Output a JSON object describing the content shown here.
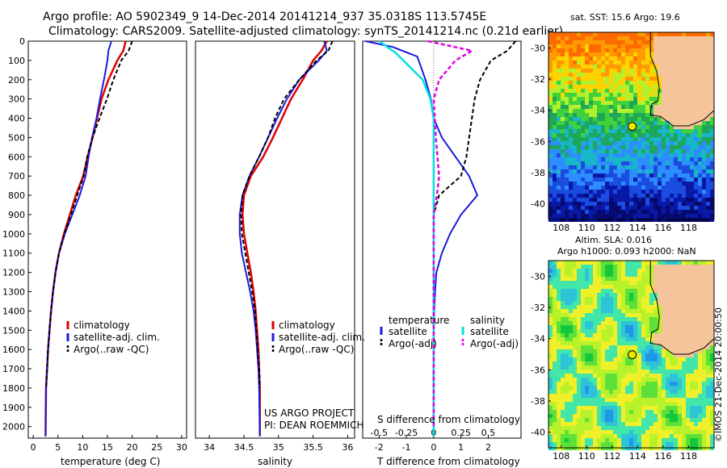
{
  "header": {
    "line1": "Argo profile: AO 5902349_9 14-Dec-2014 20141214_937 35.0318S 113.5745E",
    "line2": "Climatology: CARS2009. Satellite-adjusted climatology: synTS_20141214.nc (0.21d earlier)"
  },
  "footer": {
    "project_line1": "US ARGO PROJECT",
    "project_line2": "PI: DEAN ROEMMICH",
    "credit": "©IMOS 21-Dec-2014 20:00:50"
  },
  "colors": {
    "climatology": "#e00000",
    "satellite": "#1a1adc",
    "argo": "#000000",
    "salinity_satellite": "#00e0e0",
    "salinity_argo": "#e000e0",
    "land": "#f6c49a"
  },
  "chart_data": [
    {
      "type": "line",
      "id": "temperature",
      "xlabel": "temperature (deg C)",
      "xlim": [
        -1,
        31
      ],
      "xticks": [
        "0",
        "5",
        "10",
        "15",
        "20",
        "25",
        "30"
      ],
      "ylim": [
        0,
        2060
      ],
      "yticks": [
        "0",
        "100",
        "200",
        "300",
        "400",
        "500",
        "600",
        "700",
        "800",
        "900",
        "1000",
        "1100",
        "1200",
        "1300",
        "1400",
        "1500",
        "1600",
        "1700",
        "1800",
        "1900",
        "2000"
      ],
      "legend": [
        "climatology",
        "satellite-adj. clim.",
        "Argo(..raw -QC)"
      ],
      "series": [
        {
          "name": "climatology",
          "x": [
            18.7,
            18.2,
            17.0,
            15.2,
            13.8,
            12.9,
            12.0,
            11.0,
            10.1,
            8.6,
            7.4,
            6.2,
            5.2,
            4.5,
            4.0,
            3.6,
            3.3,
            3.0,
            2.8,
            2.6,
            2.5
          ],
          "y": [
            0,
            50,
            100,
            200,
            300,
            400,
            500,
            600,
            700,
            800,
            900,
            1000,
            1100,
            1200,
            1300,
            1400,
            1500,
            1600,
            1700,
            1800,
            2050
          ]
        },
        {
          "name": "satellite-adj. clim.",
          "x": [
            15.8,
            15.2,
            15.0,
            14.3,
            13.5,
            12.8,
            11.9,
            11.2,
            10.6,
            9.4,
            7.9,
            6.4,
            5.2,
            4.5,
            4.0,
            3.6,
            3.3,
            3.0,
            2.8,
            2.6,
            2.5
          ],
          "y": [
            0,
            50,
            100,
            200,
            300,
            400,
            500,
            600,
            700,
            800,
            900,
            1000,
            1100,
            1200,
            1300,
            1400,
            1500,
            1600,
            1700,
            1800,
            2050
          ]
        },
        {
          "name": "Argo(..raw -QC)",
          "x": [
            20.0,
            19.3,
            17.8,
            16.2,
            14.9,
            13.4,
            12.0,
            10.9,
            10.2,
            8.9,
            7.6,
            6.3,
            5.2,
            4.5,
            4.0,
            3.6,
            3.3,
            3.0,
            2.8,
            2.6
          ],
          "y": [
            0,
            50,
            100,
            200,
            300,
            400,
            500,
            600,
            700,
            800,
            900,
            1000,
            1100,
            1200,
            1300,
            1400,
            1500,
            1600,
            1700,
            1800
          ]
        }
      ]
    },
    {
      "type": "line",
      "id": "salinity",
      "xlabel": "salinity",
      "xlim": [
        33.8,
        36.1
      ],
      "xticks": [
        "34",
        "34.5",
        "35",
        "35.5",
        "36"
      ],
      "ylim": [
        0,
        2060
      ],
      "legend": [
        "climatology",
        "satellite-adj. clim.",
        "Argo(..raw -QC)"
      ],
      "series": [
        {
          "name": "climatology",
          "x": [
            35.7,
            35.62,
            35.5,
            35.35,
            35.18,
            35.05,
            34.92,
            34.78,
            34.6,
            34.5,
            34.48,
            34.5,
            34.55,
            34.6,
            34.64,
            34.67,
            34.69,
            34.71,
            34.72,
            34.73,
            34.73
          ],
          "y": [
            0,
            50,
            100,
            200,
            300,
            400,
            500,
            600,
            700,
            800,
            900,
            1000,
            1100,
            1200,
            1300,
            1400,
            1500,
            1600,
            1700,
            1800,
            2050
          ]
        },
        {
          "name": "satellite-adj. clim.",
          "x": [
            35.66,
            35.7,
            35.58,
            35.3,
            35.12,
            34.98,
            34.85,
            34.72,
            34.58,
            34.48,
            34.44,
            34.44,
            34.47,
            34.53,
            34.59,
            34.64,
            34.67,
            34.69,
            34.71,
            34.72,
            34.73
          ],
          "y": [
            0,
            50,
            100,
            200,
            300,
            400,
            500,
            600,
            700,
            800,
            900,
            1000,
            1100,
            1200,
            1300,
            1400,
            1500,
            1600,
            1700,
            1800,
            2050
          ]
        },
        {
          "name": "Argo(..raw -QC)",
          "x": [
            35.78,
            35.72,
            35.55,
            35.3,
            35.08,
            34.95,
            34.85,
            34.72,
            34.58,
            34.48,
            34.46,
            34.47,
            34.52,
            34.57,
            34.62,
            34.66,
            34.68,
            34.7,
            34.72,
            34.73
          ],
          "y": [
            0,
            50,
            100,
            200,
            300,
            400,
            500,
            600,
            700,
            800,
            900,
            1000,
            1100,
            1200,
            1300,
            1400,
            1500,
            1600,
            1700,
            1800
          ]
        }
      ]
    },
    {
      "type": "line",
      "id": "difference",
      "xlabel": "T difference from climatology",
      "xlabel2": "S difference from climatology",
      "xlim": [
        -2.6,
        3.2
      ],
      "xticks": [
        "-2",
        "-1",
        "0",
        "1",
        "2"
      ],
      "xticks2": [
        "-0.5",
        "-0.25",
        "0",
        "0.25",
        "0.5"
      ],
      "legend_temperature_title": "temperature",
      "legend_salinity_title": "salinity",
      "legend": [
        "satellite",
        "Argo(-adj)",
        "satellite",
        "Argo(-adj)"
      ],
      "series": [
        {
          "name": "temperature satellite",
          "x": [
            -2.5,
            -1.5,
            -0.6,
            -0.3,
            -0.1,
            0.0,
            0.3,
            0.8,
            1.3,
            1.6,
            1.0,
            0.6,
            0.3,
            0.1,
            0.05,
            0.02,
            0.0,
            0.0,
            0.0,
            0.0
          ],
          "y": [
            0,
            30,
            80,
            200,
            300,
            400,
            500,
            600,
            700,
            800,
            900,
            1000,
            1100,
            1200,
            1300,
            1400,
            1500,
            1600,
            1800,
            2050
          ]
        },
        {
          "name": "temperature Argo(-adj)",
          "x": [
            3.0,
            2.7,
            2.1,
            1.7,
            1.5,
            1.4,
            1.3,
            1.2,
            1.0,
            0.2,
            0.0,
            0.0,
            0.0,
            0.0,
            0.0,
            0.0,
            0.0,
            0.0
          ],
          "y": [
            0,
            50,
            100,
            200,
            300,
            400,
            500,
            600,
            700,
            800,
            900,
            1000,
            1100,
            1200,
            1400,
            1600,
            1800,
            2000
          ]
        },
        {
          "name": "salinity satellite",
          "x": [
            -0.5,
            -0.35,
            -0.1,
            -0.03,
            0.0,
            0.0,
            0.0,
            0.0,
            0.0,
            0.0,
            0.0,
            0.0,
            0.0
          ],
          "y": [
            0,
            60,
            200,
            300,
            400,
            500,
            700,
            900,
            1100,
            1300,
            1500,
            1800,
            2050
          ]
        },
        {
          "name": "salinity Argo(-adj)",
          "x": [
            -0.05,
            0.35,
            0.2,
            0.05,
            0.0,
            0.02,
            0.05,
            0.03,
            0.0,
            0.0,
            0.0,
            0.0
          ],
          "y": [
            0,
            50,
            100,
            200,
            300,
            500,
            700,
            800,
            900,
            1100,
            1400,
            2000
          ]
        }
      ]
    },
    {
      "type": "heatmap",
      "id": "sst_map",
      "title": "sat. SST: 15.6  Argo: 19.6",
      "xlim": [
        107,
        120
      ],
      "ylim": [
        -41,
        -29
      ],
      "xticks": [
        "108",
        "110",
        "112",
        "114",
        "116",
        "118"
      ],
      "yticks": [
        "-30",
        "-32",
        "-34",
        "-36",
        "-38",
        "-40"
      ],
      "marker": {
        "lon": 113.57,
        "lat": -35.03
      }
    },
    {
      "type": "heatmap",
      "id": "sla_map",
      "title": "Altim. SLA: 0.016",
      "subtitle": "Argo h1000: 0.093 h2000: NaN",
      "xlim": [
        107,
        120
      ],
      "ylim": [
        -41,
        -29
      ],
      "xticks": [
        "108",
        "110",
        "112",
        "114",
        "116",
        "118"
      ],
      "yticks": [
        "-30",
        "-32",
        "-34",
        "-36",
        "-38",
        "-40"
      ],
      "marker": {
        "lon": 113.57,
        "lat": -35.03
      }
    }
  ]
}
